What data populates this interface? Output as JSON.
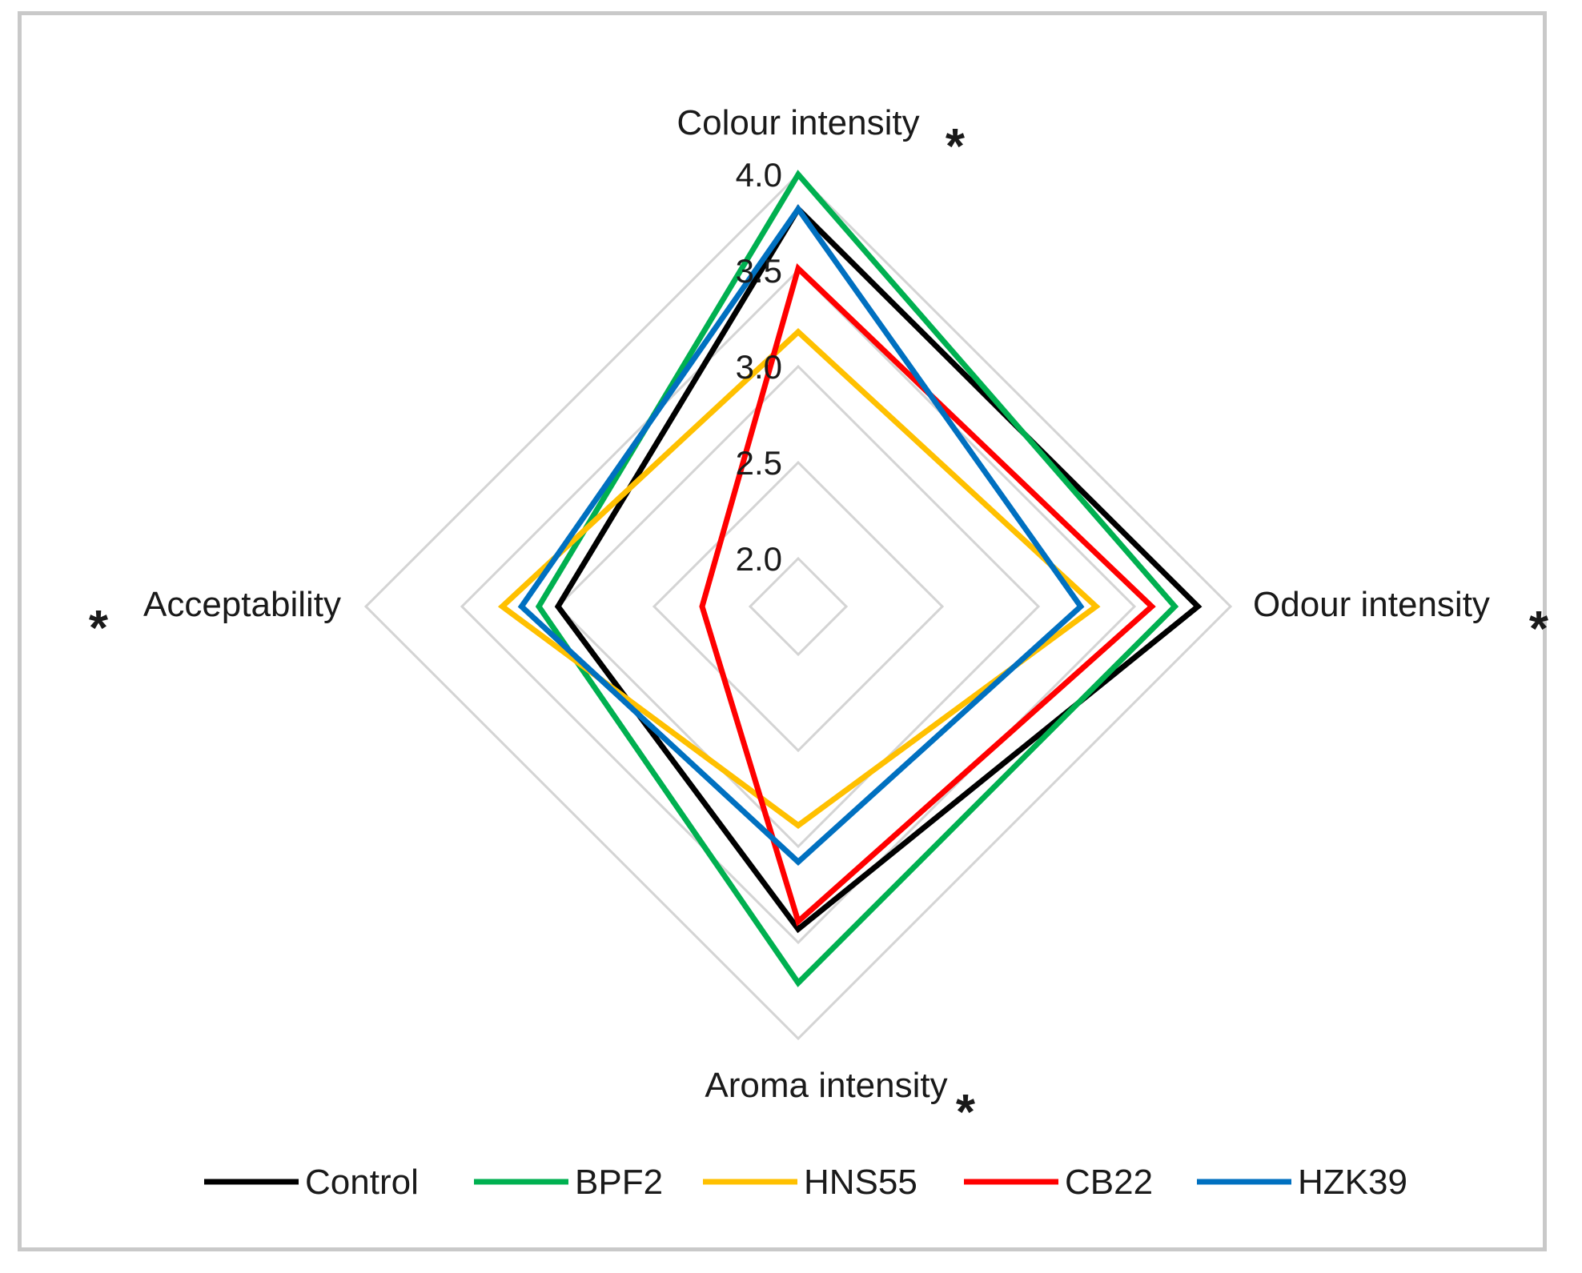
{
  "chart_data": {
    "type": "radar",
    "axes": [
      "Colour intensity",
      "Odour intensity",
      "Aroma intensity",
      "Acceptability"
    ],
    "significance_marker": "*",
    "significant_axes": [
      true,
      true,
      true,
      true
    ],
    "ticks": [
      "2.0",
      "2.5",
      "3.0",
      "3.5",
      "4.0"
    ],
    "tick_values": [
      2.0,
      2.5,
      3.0,
      3.5,
      4.0
    ],
    "range": [
      2.0,
      4.0
    ],
    "radius_min": 1.75,
    "grid": true,
    "legend_position": "bottom",
    "series": [
      {
        "name": "Control",
        "color": "#000000",
        "values": [
          3.82,
          3.83,
          3.43,
          3.0
        ]
      },
      {
        "name": "BPF2",
        "color": "#00b050",
        "values": [
          4.0,
          3.71,
          3.71,
          3.1
        ]
      },
      {
        "name": "HNS55",
        "color": "#ffc000",
        "values": [
          3.18,
          3.3,
          2.89,
          3.29
        ]
      },
      {
        "name": "CB22",
        "color": "#ff0000",
        "values": [
          3.51,
          3.59,
          3.39,
          2.25
        ]
      },
      {
        "name": "HZK39",
        "color": "#0070c0",
        "values": [
          3.82,
          3.22,
          3.08,
          3.19
        ]
      }
    ]
  }
}
